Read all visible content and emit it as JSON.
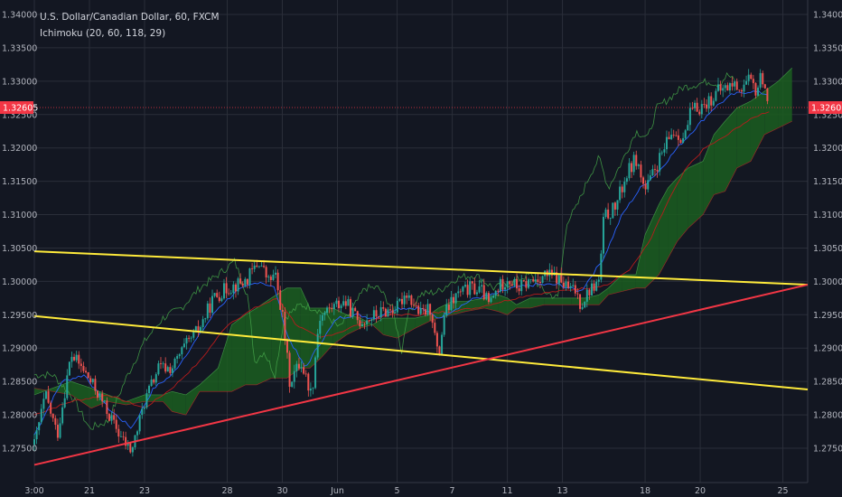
{
  "chart_data": {
    "type": "candlestick",
    "title": "U.S. Dollar/Canadian Dollar, 60, FXCM",
    "indicator": "Ichimoku (20, 60, 118, 29)",
    "y_axis": {
      "ylim": [
        1.272,
        1.342
      ],
      "ticks": [
        "1.34000",
        "1.33500",
        "1.33000",
        "1.32500",
        "1.32000",
        "1.31500",
        "1.31000",
        "1.30500",
        "1.30000",
        "1.29500",
        "1.29000",
        "1.28500",
        "1.28000",
        "1.27500"
      ],
      "position": "both"
    },
    "x_axis": {
      "ticks": [
        {
          "label": "3:00",
          "t": 0
        },
        {
          "label": "21",
          "t": 60
        },
        {
          "label": "23",
          "t": 120
        },
        {
          "label": "28",
          "t": 210
        },
        {
          "label": "30",
          "t": 270
        },
        {
          "label": "Jun",
          "t": 330
        },
        {
          "label": "5",
          "t": 395
        },
        {
          "label": "7",
          "t": 455
        },
        {
          "label": "11",
          "t": 515
        },
        {
          "label": "13",
          "t": 575
        },
        {
          "label": "18",
          "t": 665
        },
        {
          "label": "20",
          "t": 725
        },
        {
          "label": "25",
          "t": 815
        }
      ],
      "t_range": [
        0,
        842
      ]
    },
    "last_price": "1.32605",
    "price_path": [
      [
        0,
        1.2755
      ],
      [
        12,
        1.283
      ],
      [
        25,
        1.277
      ],
      [
        40,
        1.289
      ],
      [
        52,
        1.287
      ],
      [
        70,
        1.283
      ],
      [
        85,
        1.279
      ],
      [
        97,
        1.276
      ],
      [
        106,
        1.2745
      ],
      [
        120,
        1.282
      ],
      [
        135,
        1.287
      ],
      [
        150,
        1.287
      ],
      [
        163,
        1.29
      ],
      [
        180,
        1.293
      ],
      [
        195,
        1.2975
      ],
      [
        210,
        1.299
      ],
      [
        230,
        1.3
      ],
      [
        245,
        1.303
      ],
      [
        255,
        1.3
      ],
      [
        262,
        1.301
      ],
      [
        270,
        1.295
      ],
      [
        278,
        1.285
      ],
      [
        290,
        1.288
      ],
      [
        302,
        1.283
      ],
      [
        310,
        1.2945
      ],
      [
        322,
        1.296
      ],
      [
        338,
        1.297
      ],
      [
        353,
        1.294
      ],
      [
        365,
        1.2945
      ],
      [
        380,
        1.2955
      ],
      [
        395,
        1.296
      ],
      [
        405,
        1.2985
      ],
      [
        420,
        1.295
      ],
      [
        432,
        1.296
      ],
      [
        440,
        1.288
      ],
      [
        446,
        1.295
      ],
      [
        460,
        1.298
      ],
      [
        475,
        1.299
      ],
      [
        488,
        1.2985
      ],
      [
        495,
        1.2965
      ],
      [
        505,
        1.299
      ],
      [
        515,
        1.3005
      ],
      [
        527,
        1.299
      ],
      [
        540,
        1.3
      ],
      [
        555,
        1.301
      ],
      [
        570,
        1.3005
      ],
      [
        580,
        1.299
      ],
      [
        590,
        1.2985
      ],
      [
        595,
        1.2965
      ],
      [
        603,
        1.2985
      ],
      [
        615,
        1.3
      ],
      [
        620,
        1.3095
      ],
      [
        632,
        1.311
      ],
      [
        645,
        1.316
      ],
      [
        655,
        1.3185
      ],
      [
        665,
        1.3135
      ],
      [
        680,
        1.318
      ],
      [
        695,
        1.3225
      ],
      [
        708,
        1.3215
      ],
      [
        715,
        1.3255
      ],
      [
        730,
        1.3265
      ],
      [
        745,
        1.3285
      ],
      [
        760,
        1.3295
      ],
      [
        770,
        1.329
      ],
      [
        778,
        1.33
      ],
      [
        786,
        1.3285
      ],
      [
        792,
        1.331
      ],
      [
        796,
        1.329
      ],
      [
        800,
        1.3265
      ]
    ],
    "tenkan": [
      [
        0,
        1.277
      ],
      [
        30,
        1.285
      ],
      [
        55,
        1.286
      ],
      [
        80,
        1.281
      ],
      [
        106,
        1.278
      ],
      [
        130,
        1.284
      ],
      [
        150,
        1.286
      ],
      [
        175,
        1.291
      ],
      [
        200,
        1.296
      ],
      [
        220,
        1.2985
      ],
      [
        245,
        1.3
      ],
      [
        262,
        1.299
      ],
      [
        275,
        1.292
      ],
      [
        295,
        1.287
      ],
      [
        310,
        1.2905
      ],
      [
        330,
        1.2945
      ],
      [
        350,
        1.295
      ],
      [
        370,
        1.2945
      ],
      [
        395,
        1.296
      ],
      [
        420,
        1.296
      ],
      [
        440,
        1.2945
      ],
      [
        460,
        1.296
      ],
      [
        480,
        1.2975
      ],
      [
        500,
        1.298
      ],
      [
        520,
        1.299
      ],
      [
        545,
        1.2995
      ],
      [
        570,
        1.2995
      ],
      [
        595,
        1.2985
      ],
      [
        620,
        1.3035
      ],
      [
        640,
        1.31
      ],
      [
        660,
        1.314
      ],
      [
        680,
        1.3165
      ],
      [
        700,
        1.32
      ],
      [
        720,
        1.323
      ],
      [
        740,
        1.326
      ],
      [
        760,
        1.328
      ],
      [
        780,
        1.3285
      ],
      [
        800,
        1.328
      ]
    ],
    "kijun": [
      [
        0,
        1.28
      ],
      [
        40,
        1.282
      ],
      [
        80,
        1.283
      ],
      [
        120,
        1.281
      ],
      [
        150,
        1.284
      ],
      [
        180,
        1.288
      ],
      [
        210,
        1.2935
      ],
      [
        240,
        1.296
      ],
      [
        265,
        1.2975
      ],
      [
        285,
        1.2935
      ],
      [
        310,
        1.2915
      ],
      [
        335,
        1.2925
      ],
      [
        360,
        1.294
      ],
      [
        390,
        1.295
      ],
      [
        420,
        1.295
      ],
      [
        450,
        1.2955
      ],
      [
        480,
        1.296
      ],
      [
        510,
        1.297
      ],
      [
        540,
        1.298
      ],
      [
        570,
        1.2985
      ],
      [
        600,
        1.299
      ],
      [
        625,
        1.2995
      ],
      [
        650,
        1.302
      ],
      [
        670,
        1.306
      ],
      [
        690,
        1.312
      ],
      [
        710,
        1.317
      ],
      [
        730,
        1.32
      ],
      [
        750,
        1.3215
      ],
      [
        770,
        1.3235
      ],
      [
        790,
        1.325
      ],
      [
        800,
        1.3255
      ]
    ],
    "chikou": [
      [
        0,
        1.286
      ],
      [
        20,
        1.286
      ],
      [
        40,
        1.283
      ],
      [
        60,
        1.278
      ],
      [
        80,
        1.279
      ],
      [
        100,
        1.2855
      ],
      [
        120,
        1.291
      ],
      [
        140,
        1.2945
      ],
      [
        160,
        1.296
      ],
      [
        180,
        1.299
      ],
      [
        200,
        1.301
      ],
      [
        218,
        1.303
      ],
      [
        232,
        1.298
      ],
      [
        240,
        1.288
      ],
      [
        250,
        1.2895
      ],
      [
        262,
        1.286
      ],
      [
        272,
        1.2945
      ],
      [
        290,
        1.2965
      ],
      [
        305,
        1.296
      ],
      [
        318,
        1.295
      ],
      [
        332,
        1.293
      ],
      [
        345,
        1.2955
      ],
      [
        360,
        1.299
      ],
      [
        375,
        1.299
      ],
      [
        390,
        1.296
      ],
      [
        400,
        1.2895
      ],
      [
        406,
        1.295
      ],
      [
        420,
        1.298
      ],
      [
        440,
        1.2985
      ],
      [
        460,
        1.3005
      ],
      [
        480,
        1.301
      ],
      [
        500,
        1.299
      ],
      [
        515,
        1.2995
      ],
      [
        530,
        1.3005
      ],
      [
        540,
        1.301
      ],
      [
        555,
        1.2985
      ],
      [
        570,
        1.2975
      ],
      [
        580,
        1.309
      ],
      [
        590,
        1.311
      ],
      [
        605,
        1.316
      ],
      [
        615,
        1.3185
      ],
      [
        625,
        1.314
      ],
      [
        640,
        1.318
      ],
      [
        655,
        1.3225
      ],
      [
        668,
        1.3215
      ],
      [
        678,
        1.326
      ],
      [
        692,
        1.3275
      ],
      [
        705,
        1.329
      ],
      [
        720,
        1.3295
      ],
      [
        735,
        1.33
      ],
      [
        745,
        1.3295
      ],
      [
        755,
        1.331
      ],
      [
        762,
        1.33
      ]
    ],
    "cloud": [
      [
        0,
        1.283,
        1.284
      ],
      [
        40,
        1.285,
        1.283
      ],
      [
        62,
        1.284,
        1.281
      ],
      [
        80,
        1.283,
        1.282
      ],
      [
        100,
        1.282,
        1.2815
      ],
      [
        120,
        1.283,
        1.282
      ],
      [
        140,
        1.283,
        1.282
      ],
      [
        150,
        1.2835,
        1.2805
      ],
      [
        165,
        1.283,
        1.28
      ],
      [
        180,
        1.2845,
        1.2835
      ],
      [
        200,
        1.287,
        1.2835
      ],
      [
        215,
        1.2935,
        1.2835
      ],
      [
        230,
        1.295,
        1.2845
      ],
      [
        242,
        1.296,
        1.2845
      ],
      [
        258,
        1.2975,
        1.2855
      ],
      [
        275,
        1.299,
        1.2855
      ],
      [
        290,
        1.299,
        1.287
      ],
      [
        300,
        1.296,
        1.287
      ],
      [
        312,
        1.296,
        1.2885
      ],
      [
        325,
        1.296,
        1.2905
      ],
      [
        340,
        1.295,
        1.292
      ],
      [
        355,
        1.2945,
        1.293
      ],
      [
        368,
        1.2935,
        1.2935
      ],
      [
        380,
        1.2945,
        1.292
      ],
      [
        395,
        1.2945,
        1.2915
      ],
      [
        415,
        1.2945,
        1.293
      ],
      [
        430,
        1.295,
        1.294
      ],
      [
        440,
        1.296,
        1.2945
      ],
      [
        455,
        1.297,
        1.295
      ],
      [
        470,
        1.297,
        1.2955
      ],
      [
        490,
        1.2975,
        1.296
      ],
      [
        505,
        1.298,
        1.2955
      ],
      [
        515,
        1.2975,
        1.295
      ],
      [
        525,
        1.2965,
        1.296
      ],
      [
        540,
        1.2975,
        1.296
      ],
      [
        555,
        1.2975,
        1.2965
      ],
      [
        575,
        1.2975,
        1.2965
      ],
      [
        585,
        1.2975,
        1.2965
      ],
      [
        600,
        1.2975,
        1.2965
      ],
      [
        615,
        1.298,
        1.2965
      ],
      [
        625,
        1.299,
        1.298
      ],
      [
        640,
        1.301,
        1.2985
      ],
      [
        655,
        1.301,
        1.299
      ],
      [
        665,
        1.307,
        1.299
      ],
      [
        680,
        1.3115,
        1.301
      ],
      [
        690,
        1.314,
        1.3035
      ],
      [
        700,
        1.3155,
        1.306
      ],
      [
        712,
        1.317,
        1.308
      ],
      [
        728,
        1.318,
        1.31
      ],
      [
        740,
        1.322,
        1.313
      ],
      [
        752,
        1.324,
        1.3135
      ],
      [
        765,
        1.326,
        1.317
      ],
      [
        780,
        1.327,
        1.318
      ],
      [
        795,
        1.3285,
        1.322
      ],
      [
        810,
        1.33,
        1.323
      ],
      [
        825,
        1.332,
        1.324
      ]
    ],
    "trendlines": [
      {
        "color": "#ffeb3b",
        "from": [
          0,
          1.3045
        ],
        "to": [
          842,
          1.2995
        ]
      },
      {
        "color": "#ffeb3b",
        "from": [
          0,
          1.2948
        ],
        "to": [
          842,
          1.2838
        ]
      },
      {
        "color": "#f23645",
        "from": [
          0,
          1.2725
        ],
        "to": [
          842,
          1.2995
        ]
      }
    ],
    "colors": {
      "background": "#131722",
      "up": "#26a69a",
      "down": "#ef5350",
      "tenkan": "#2962ff",
      "kijun": "#b71c1c",
      "chikou": "#43a047",
      "cloud_bull": "#1b5e20",
      "cloud_bear": "#7b1fa2",
      "last_price_label": "#f23645"
    }
  }
}
